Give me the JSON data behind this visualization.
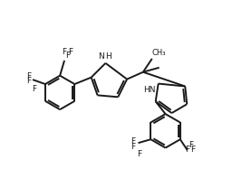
{
  "bg_color": "#ffffff",
  "line_color": "#1a1a1a",
  "line_width": 1.4,
  "font_size": 6.5,
  "figsize": [
    2.67,
    2.07
  ],
  "dpi": 100,
  "nodes": {
    "comment": "All coordinates in data units 0-267 x, 0-207 y (y up)"
  }
}
